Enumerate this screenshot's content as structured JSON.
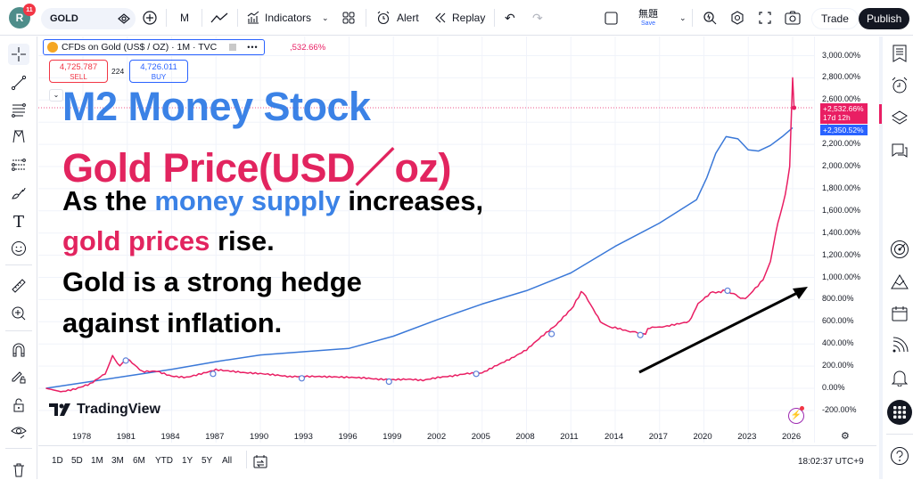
{
  "topbar": {
    "avatar_letter": "R",
    "notification_count": "11",
    "symbol": "GOLD",
    "interval": "M",
    "indicators_label": "Indicators",
    "alert_label": "Alert",
    "replay_label": "Replay",
    "layout_name": "無題",
    "save_label": "Save",
    "trade_label": "Trade",
    "publish_label": "Publish"
  },
  "legend": {
    "title": "CFDs on Gold (US$ / OZ) · 1M · TVC",
    "change_pct": ",532.66%",
    "sell_price": "4,725.787",
    "sell_label": "SELL",
    "spread": "224",
    "buy_price": "4,726.011",
    "buy_label": "BUY"
  },
  "overlay_text": {
    "line1": "M2 Money Stock",
    "line2": "Gold Price(USD／oz)",
    "line3_a": "As the ",
    "line3_b": "money supply",
    "line3_c": " increases,",
    "line4_a": "gold prices",
    "line4_b": " rise.",
    "line5": "Gold is a strong hedge",
    "line6": "against inflation."
  },
  "price_tags": {
    "gold_value": "+2,532.66%",
    "gold_countdown": "17d 12h",
    "m2_value": "+2,350.52%"
  },
  "colors": {
    "gold_line": "#e91e63",
    "m2_line": "#3a78d8",
    "blue_text": "#3b82e6",
    "pink_text": "#e2245f"
  },
  "watermark": "TradingView",
  "bottom": {
    "ranges": [
      "1D",
      "5D",
      "1M",
      "3M",
      "6M",
      "YTD",
      "1Y",
      "5Y",
      "All"
    ],
    "clock": "18:02:37 UTC+9"
  },
  "chart_data": {
    "type": "line",
    "title": "M2 Money Stock vs Gold Price (USD/oz), % change",
    "xlabel": "",
    "ylabel": "% change",
    "ylim": [
      -200,
      3000
    ],
    "x_ticks": [
      "1978",
      "1981",
      "1984",
      "1987",
      "1990",
      "1993",
      "1996",
      "1999",
      "2002",
      "2005",
      "2008",
      "2011",
      "2014",
      "2017",
      "2020",
      "2023",
      "2026"
    ],
    "y_ticks": [
      "3,000.00%",
      "2,800.00%",
      "2,600.00%",
      "2,400.00%",
      "2,200.00%",
      "2,000.00%",
      "1,800.00%",
      "1,600.00%",
      "1,400.00%",
      "1,200.00%",
      "1,000.00%",
      "800.00%",
      "600.00%",
      "400.00%",
      "200.00%",
      "0.00%",
      "-200.00%"
    ],
    "grid": true,
    "series": [
      {
        "name": "M2 Money Stock",
        "color": "#3a78d8",
        "x": [
          1975.5,
          1978,
          1981,
          1984,
          1987,
          1990,
          1993,
          1996,
          1999,
          2002,
          2005,
          2008,
          2011,
          2014,
          2017,
          2019.5,
          2020.2,
          2020.8,
          2021.5,
          2022.3,
          2023,
          2023.7,
          2024.5,
          2025.3,
          2026
        ],
        "values": [
          0,
          50,
          110,
          170,
          240,
          300,
          330,
          360,
          470,
          620,
          760,
          880,
          1040,
          1280,
          1490,
          1700,
          1900,
          2120,
          2270,
          2250,
          2150,
          2140,
          2190,
          2270,
          2350
        ]
      },
      {
        "name": "Gold Price (USD/oz)",
        "color": "#e91e63",
        "x": [
          1975.5,
          1976.5,
          1977.5,
          1978.5,
          1979.5,
          1980.0,
          1980.5,
          1981,
          1982,
          1983,
          1984,
          1985,
          1986,
          1987,
          1988,
          1989,
          1990,
          1991,
          1992,
          1993,
          1994,
          1995,
          1996,
          1997,
          1998,
          1999,
          2000,
          2001,
          2002,
          2003,
          2004,
          2005,
          2006,
          2007,
          2008,
          2009,
          2010,
          2011,
          2011.7,
          2012,
          2013,
          2013.5,
          2014,
          2015,
          2015.9,
          2016.5,
          2017,
          2018,
          2019,
          2019.6,
          2020.6,
          2021,
          2021.6,
          2022,
          2022.8,
          2023.3,
          2024,
          2024.5,
          2025,
          2025.5,
          2025.8,
          2026,
          2026.1
        ],
        "values": [
          0,
          -30,
          -10,
          30,
          120,
          280,
          190,
          260,
          150,
          160,
          120,
          110,
          140,
          170,
          150,
          130,
          120,
          110,
          100,
          110,
          115,
          115,
          110,
          100,
          80,
          70,
          70,
          60,
          90,
          110,
          140,
          150,
          220,
          280,
          350,
          460,
          560,
          700,
          870,
          820,
          600,
          560,
          550,
          520,
          480,
          570,
          560,
          580,
          600,
          760,
          880,
          860,
          900,
          840,
          820,
          880,
          970,
          1150,
          1500,
          1750,
          2000,
          2800,
          2532.66
        ]
      }
    ]
  }
}
